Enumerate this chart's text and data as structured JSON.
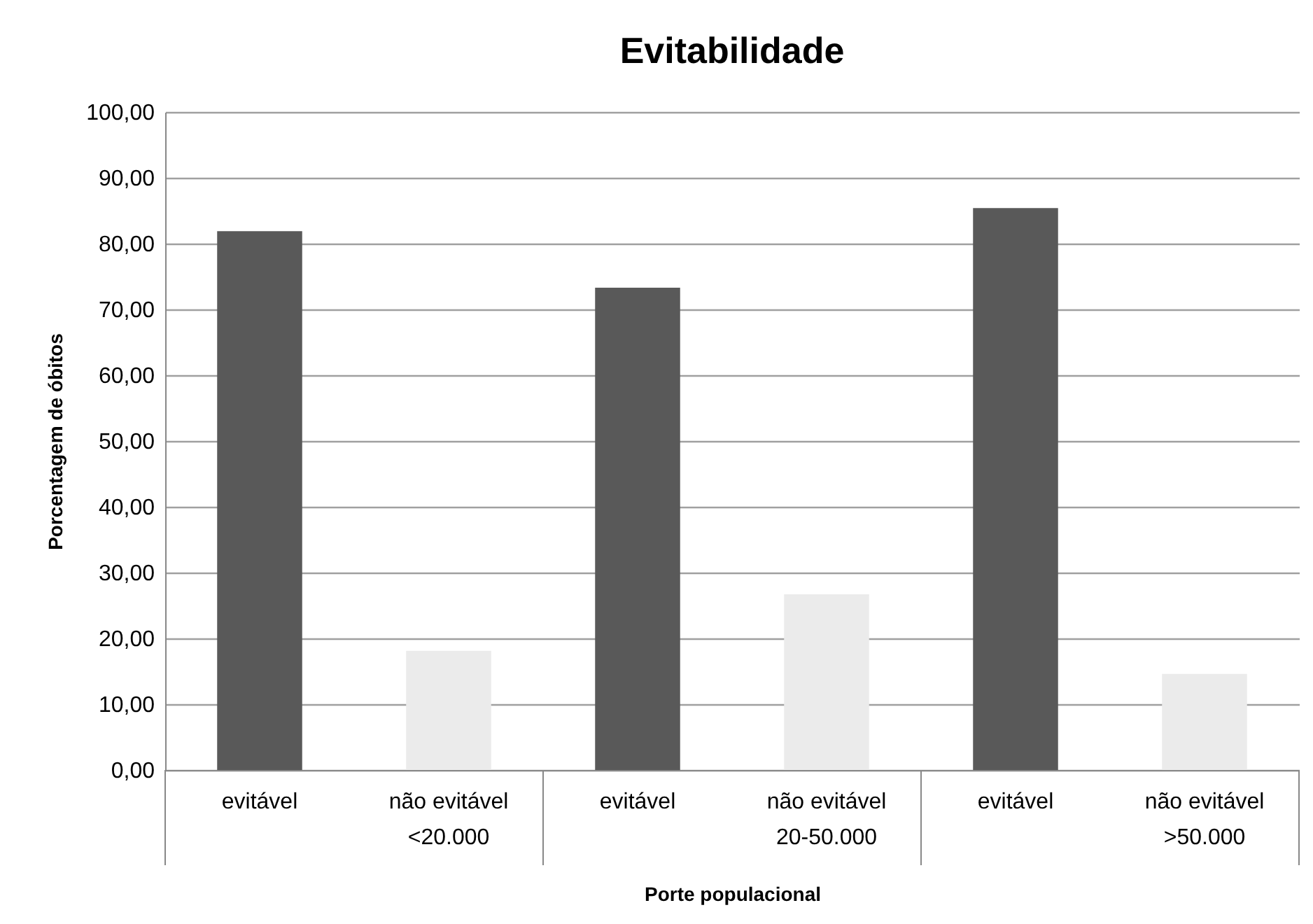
{
  "chart_data": {
    "type": "bar",
    "title": "Evitabilidade",
    "xlabel": "Porte populacional",
    "ylabel": "Porcentagem de óbitos",
    "categories": [
      "evitável",
      "não evitável",
      "evitável",
      "não evitável",
      "evitável",
      "não evitável"
    ],
    "values": [
      81.9,
      18.1,
      73.3,
      26.7,
      85.4,
      14.6
    ],
    "colors": [
      "#595959",
      "#ebebeb",
      "#595959",
      "#ebebeb",
      "#595959",
      "#ebebeb"
    ],
    "ylim": [
      0,
      100
    ],
    "yticks": [
      {
        "value": 0,
        "label": "0,00"
      },
      {
        "value": 10,
        "label": "10,00"
      },
      {
        "value": 20,
        "label": "20,00"
      },
      {
        "value": 30,
        "label": "30,00"
      },
      {
        "value": 40,
        "label": "40,00"
      },
      {
        "value": 50,
        "label": "50,00"
      },
      {
        "value": 60,
        "label": "60,00"
      },
      {
        "value": 70,
        "label": "70,00"
      },
      {
        "value": 80,
        "label": "80,00"
      },
      {
        "value": 90,
        "label": "90,00"
      },
      {
        "value": 100,
        "label": "100,00"
      }
    ],
    "annotations": [
      "<20.000",
      "20-50.000",
      ">50.000"
    ],
    "grid": "y"
  }
}
